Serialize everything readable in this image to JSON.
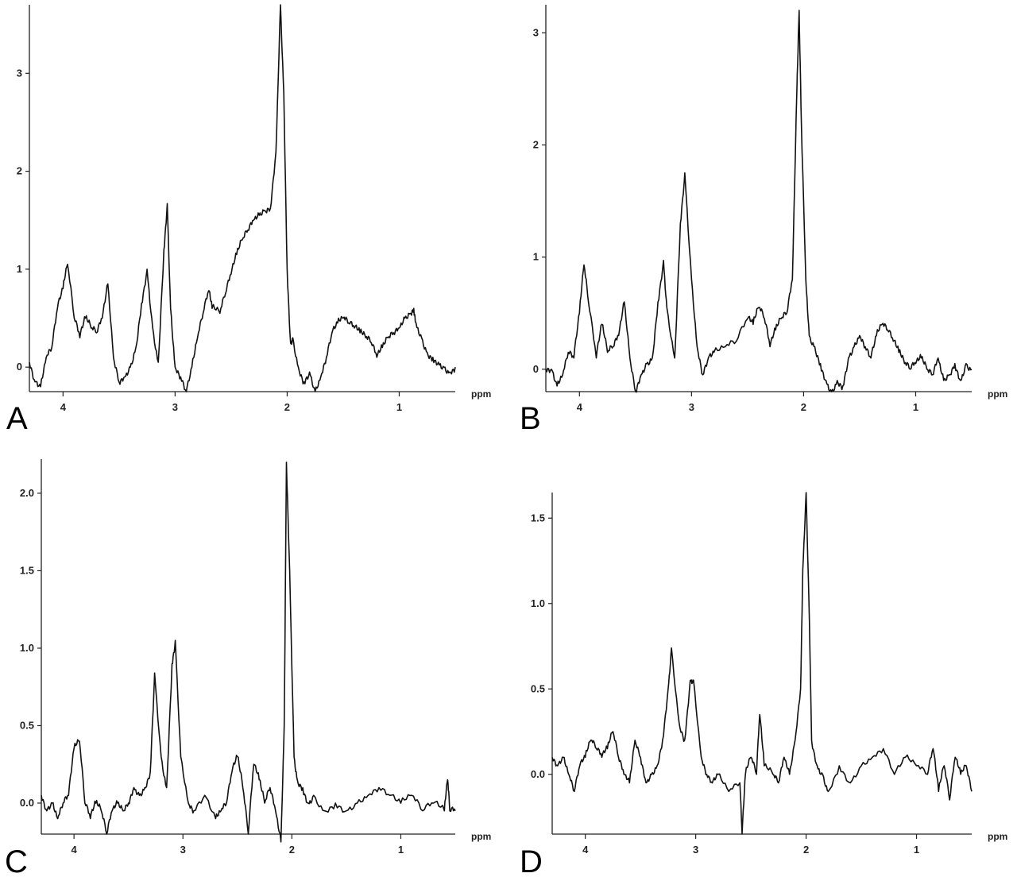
{
  "chart_data": [
    {
      "panel": "A",
      "type": "line",
      "xlabel": "ppm",
      "xlim": [
        4.3,
        0.5
      ],
      "ylim": [
        -0.25,
        3.7
      ],
      "x_ticks": [
        4,
        3,
        2,
        1
      ],
      "y_ticks": [
        0,
        1,
        2,
        3
      ],
      "y_tick_labels": [
        "0",
        "1",
        "2",
        "3"
      ],
      "x": [
        4.3,
        4.25,
        4.2,
        4.15,
        4.1,
        4.05,
        4.0,
        3.96,
        3.9,
        3.85,
        3.8,
        3.75,
        3.7,
        3.65,
        3.6,
        3.55,
        3.5,
        3.45,
        3.4,
        3.35,
        3.3,
        3.25,
        3.2,
        3.15,
        3.1,
        3.07,
        3.04,
        3.0,
        2.95,
        2.9,
        2.85,
        2.8,
        2.75,
        2.7,
        2.67,
        2.6,
        2.55,
        2.5,
        2.45,
        2.4,
        2.35,
        2.3,
        2.25,
        2.2,
        2.15,
        2.1,
        2.06,
        2.03,
        2.0,
        1.97,
        1.95,
        1.9,
        1.85,
        1.8,
        1.75,
        1.7,
        1.65,
        1.6,
        1.55,
        1.5,
        1.45,
        1.4,
        1.35,
        1.3,
        1.25,
        1.2,
        1.15,
        1.1,
        1.05,
        1.0,
        0.95,
        0.9,
        0.87,
        0.85,
        0.8,
        0.75,
        0.7,
        0.65,
        0.6,
        0.55,
        0.5
      ],
      "y": [
        0.05,
        -0.15,
        -0.2,
        0.1,
        0.2,
        0.6,
        0.8,
        1.05,
        0.5,
        0.3,
        0.5,
        0.4,
        0.35,
        0.5,
        0.85,
        0.1,
        -0.15,
        -0.1,
        0.0,
        0.2,
        0.65,
        1.0,
        0.4,
        0.05,
        1.2,
        1.67,
        0.6,
        0.0,
        -0.1,
        -0.25,
        0.0,
        0.3,
        0.55,
        0.78,
        0.6,
        0.55,
        0.75,
        0.95,
        1.15,
        1.3,
        1.4,
        1.5,
        1.55,
        1.6,
        1.62,
        2.2,
        3.7,
        2.8,
        1.0,
        0.25,
        0.3,
        0.0,
        -0.15,
        -0.05,
        -0.25,
        -0.1,
        0.1,
        0.35,
        0.45,
        0.5,
        0.45,
        0.4,
        0.35,
        0.3,
        0.25,
        0.1,
        0.2,
        0.3,
        0.35,
        0.4,
        0.5,
        0.55,
        0.6,
        0.45,
        0.3,
        0.15,
        0.1,
        0.05,
        0.0,
        -0.05,
        0.0
      ]
    },
    {
      "panel": "B",
      "type": "line",
      "xlabel": "ppm",
      "xlim": [
        4.3,
        0.5
      ],
      "ylim": [
        -0.2,
        3.25
      ],
      "x_ticks": [
        4,
        3,
        2,
        1
      ],
      "y_ticks": [
        0,
        1,
        2,
        3
      ],
      "y_tick_labels": [
        "0",
        "1",
        "2",
        "3"
      ],
      "x": [
        4.3,
        4.25,
        4.2,
        4.15,
        4.1,
        4.05,
        4.0,
        3.96,
        3.92,
        3.85,
        3.8,
        3.75,
        3.7,
        3.65,
        3.6,
        3.55,
        3.5,
        3.45,
        3.4,
        3.35,
        3.3,
        3.25,
        3.22,
        3.15,
        3.1,
        3.06,
        3.0,
        2.95,
        2.9,
        2.85,
        2.8,
        2.7,
        2.6,
        2.5,
        2.45,
        2.4,
        2.35,
        2.3,
        2.25,
        2.2,
        2.15,
        2.1,
        2.06,
        2.04,
        2.02,
        1.98,
        1.95,
        1.9,
        1.85,
        1.8,
        1.75,
        1.7,
        1.65,
        1.6,
        1.55,
        1.5,
        1.45,
        1.4,
        1.35,
        1.3,
        1.25,
        1.2,
        1.15,
        1.1,
        1.05,
        1.0,
        0.95,
        0.9,
        0.85,
        0.8,
        0.75,
        0.7,
        0.65,
        0.6,
        0.55,
        0.5
      ],
      "y": [
        0.0,
        0.0,
        -0.15,
        -0.05,
        0.15,
        0.1,
        0.5,
        0.93,
        0.6,
        0.1,
        0.4,
        0.15,
        0.2,
        0.3,
        0.6,
        0.1,
        -0.2,
        -0.05,
        0.05,
        0.1,
        0.6,
        0.97,
        0.55,
        0.1,
        1.3,
        1.75,
        0.8,
        0.2,
        -0.05,
        0.1,
        0.15,
        0.2,
        0.25,
        0.45,
        0.4,
        0.55,
        0.45,
        0.2,
        0.35,
        0.45,
        0.5,
        0.8,
        2.5,
        3.2,
        2.2,
        0.8,
        0.3,
        0.2,
        0.05,
        -0.1,
        -0.2,
        -0.1,
        -0.15,
        0.1,
        0.2,
        0.3,
        0.2,
        0.1,
        0.3,
        0.4,
        0.35,
        0.25,
        0.15,
        0.05,
        0.0,
        0.05,
        0.1,
        0.0,
        -0.05,
        0.1,
        -0.1,
        -0.05,
        0.05,
        -0.1,
        0.05,
        0.0
      ]
    },
    {
      "panel": "C",
      "type": "line",
      "xlabel": "ppm",
      "xlim": [
        4.3,
        0.5
      ],
      "ylim": [
        -0.2,
        2.22
      ],
      "x_ticks": [
        4,
        3,
        2,
        1
      ],
      "y_ticks": [
        0,
        0.5,
        1.0,
        1.5,
        2.0
      ],
      "y_tick_labels": [
        "0.0",
        "0.5",
        "1.0",
        "1.5",
        "2.0"
      ],
      "x": [
        4.3,
        4.25,
        4.2,
        4.15,
        4.1,
        4.05,
        4.0,
        3.95,
        3.9,
        3.85,
        3.8,
        3.75,
        3.7,
        3.65,
        3.6,
        3.55,
        3.5,
        3.45,
        3.4,
        3.35,
        3.3,
        3.26,
        3.2,
        3.15,
        3.1,
        3.07,
        3.02,
        2.95,
        2.9,
        2.8,
        2.7,
        2.65,
        2.6,
        2.55,
        2.5,
        2.45,
        2.4,
        2.35,
        2.3,
        2.25,
        2.2,
        2.15,
        2.1,
        2.07,
        2.05,
        2.02,
        1.98,
        1.95,
        1.9,
        1.85,
        1.8,
        1.7,
        1.6,
        1.5,
        1.4,
        1.3,
        1.2,
        1.1,
        1.0,
        0.9,
        0.8,
        0.7,
        0.6,
        0.57,
        0.55,
        0.5
      ],
      "y": [
        0.05,
        -0.05,
        0.0,
        -0.1,
        0.0,
        0.05,
        0.35,
        0.4,
        0.0,
        -0.1,
        0.0,
        -0.05,
        -0.2,
        -0.05,
        0.0,
        -0.05,
        0.0,
        0.1,
        0.05,
        0.1,
        0.2,
        0.84,
        0.3,
        0.1,
        0.9,
        1.05,
        0.3,
        0.0,
        -0.05,
        0.05,
        -0.1,
        -0.05,
        0.0,
        0.2,
        0.3,
        0.1,
        -0.2,
        0.25,
        0.15,
        0.0,
        0.1,
        -0.05,
        -0.25,
        0.5,
        2.2,
        1.5,
        0.3,
        0.15,
        0.1,
        0.0,
        0.05,
        -0.05,
        0.0,
        -0.05,
        0.0,
        0.05,
        0.1,
        0.05,
        0.0,
        0.05,
        -0.05,
        0.0,
        -0.05,
        0.15,
        -0.05,
        -0.05
      ]
    },
    {
      "panel": "D",
      "type": "line",
      "xlabel": "ppm",
      "xlim": [
        4.3,
        0.5
      ],
      "ylim": [
        -0.35,
        1.65
      ],
      "x_ticks": [
        4,
        3,
        2,
        1
      ],
      "y_ticks": [
        0,
        0.5,
        1.0,
        1.5
      ],
      "y_tick_labels": [
        "0.0",
        "0.5",
        "1.0",
        "1.5"
      ],
      "x": [
        4.3,
        4.25,
        4.2,
        4.15,
        4.1,
        4.05,
        4.0,
        3.95,
        3.9,
        3.85,
        3.8,
        3.75,
        3.7,
        3.65,
        3.6,
        3.55,
        3.5,
        3.45,
        3.4,
        3.35,
        3.3,
        3.25,
        3.22,
        3.15,
        3.1,
        3.05,
        3.02,
        2.95,
        2.9,
        2.85,
        2.8,
        2.7,
        2.6,
        2.58,
        2.55,
        2.5,
        2.45,
        2.42,
        2.38,
        2.3,
        2.25,
        2.2,
        2.15,
        2.1,
        2.05,
        2.03,
        2.0,
        1.97,
        1.95,
        1.9,
        1.85,
        1.8,
        1.7,
        1.6,
        1.5,
        1.4,
        1.3,
        1.2,
        1.1,
        1.0,
        0.9,
        0.85,
        0.8,
        0.75,
        0.7,
        0.65,
        0.6,
        0.55,
        0.5
      ],
      "y": [
        0.1,
        0.05,
        0.1,
        0.0,
        -0.1,
        0.05,
        0.1,
        0.2,
        0.15,
        0.1,
        0.15,
        0.25,
        0.1,
        0.0,
        -0.05,
        0.2,
        0.1,
        -0.05,
        0.0,
        0.05,
        0.2,
        0.5,
        0.74,
        0.3,
        0.2,
        0.55,
        0.55,
        0.1,
        0.0,
        -0.05,
        0.0,
        -0.1,
        -0.05,
        -0.35,
        0.0,
        0.1,
        0.0,
        0.35,
        0.05,
        0.0,
        -0.05,
        0.1,
        0.0,
        0.2,
        0.5,
        1.2,
        1.65,
        0.9,
        0.2,
        0.05,
        0.0,
        -0.1,
        0.05,
        -0.05,
        0.05,
        0.1,
        0.15,
        0.0,
        0.1,
        0.05,
        0.0,
        0.15,
        -0.1,
        0.05,
        -0.15,
        0.1,
        0.0,
        0.05,
        -0.1
      ]
    }
  ]
}
